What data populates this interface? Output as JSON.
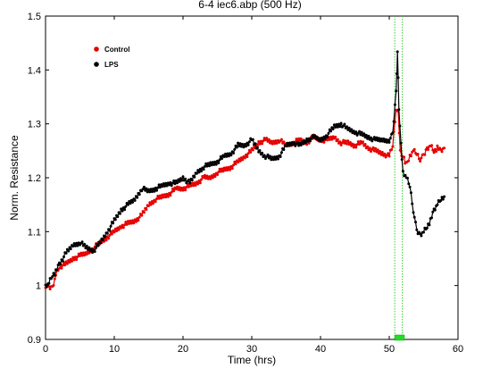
{
  "chart_data": {
    "type": "line",
    "title": "6-4 iec6.abp (500 Hz)",
    "xlabel": "Time (hrs)",
    "ylabel": "Norm. Resistance",
    "xlim": [
      0,
      60
    ],
    "ylim": [
      0.9,
      1.5
    ],
    "xticks": [
      0,
      10,
      20,
      30,
      40,
      50,
      60
    ],
    "yticks": [
      0.9,
      1.0,
      1.1,
      1.2,
      1.3,
      1.4,
      1.5
    ],
    "grid": false,
    "legend_position": "top-left",
    "event_lines_x": [
      50.8,
      51.9
    ],
    "event_bar_x": [
      50.8,
      52.2
    ],
    "event_line_color": "#33cc33",
    "event_bar_color": "#22dd22",
    "series": [
      {
        "name": "Control",
        "color": "#e60000",
        "x": [
          0,
          0.5,
          1,
          1.5,
          2,
          3,
          4,
          5,
          6,
          7,
          8,
          9,
          10,
          11,
          12,
          13,
          14,
          15,
          16,
          17,
          18,
          19,
          20,
          21,
          22,
          23,
          24,
          25,
          26,
          27,
          28,
          29,
          30,
          31,
          32,
          33,
          34,
          35,
          36,
          37,
          38,
          39,
          40,
          41,
          42,
          43,
          44,
          45,
          46,
          47,
          48,
          49,
          50,
          50.5,
          51,
          51.3,
          51.6,
          52,
          52.3,
          52.6,
          53,
          53.5,
          54,
          54.5,
          55,
          55.5,
          56,
          56.5,
          57,
          57.5,
          58
        ],
        "values": [
          1.0,
          0.995,
          0.997,
          1.02,
          1.035,
          1.04,
          1.05,
          1.055,
          1.06,
          1.07,
          1.08,
          1.09,
          1.1,
          1.11,
          1.115,
          1.12,
          1.13,
          1.15,
          1.16,
          1.165,
          1.17,
          1.18,
          1.18,
          1.185,
          1.19,
          1.2,
          1.2,
          1.21,
          1.215,
          1.22,
          1.23,
          1.24,
          1.25,
          1.265,
          1.27,
          1.265,
          1.27,
          1.26,
          1.265,
          1.27,
          1.265,
          1.275,
          1.27,
          1.27,
          1.275,
          1.265,
          1.265,
          1.26,
          1.265,
          1.255,
          1.25,
          1.245,
          1.24,
          1.26,
          1.33,
          1.32,
          1.25,
          1.24,
          1.23,
          1.225,
          1.24,
          1.25,
          1.245,
          1.235,
          1.24,
          1.255,
          1.26,
          1.25,
          1.255,
          1.25,
          1.255
        ]
      },
      {
        "name": "LPS",
        "color": "#000000",
        "x": [
          0,
          0.5,
          1,
          1.5,
          2,
          3,
          4,
          5,
          6,
          7,
          8,
          9,
          10,
          11,
          12,
          13,
          14,
          15,
          16,
          17,
          18,
          19,
          20,
          21,
          22,
          23,
          24,
          25,
          26,
          27,
          28,
          29,
          30,
          31,
          32,
          33,
          34,
          35,
          36,
          37,
          38,
          39,
          40,
          41,
          42,
          43,
          44,
          45,
          46,
          47,
          48,
          49,
          50,
          50.5,
          51,
          51.2,
          51.4,
          51.7,
          52,
          52.5,
          53,
          53.5,
          54,
          54.5,
          55,
          55.5,
          56,
          56.5,
          57,
          57.5,
          58
        ],
        "values": [
          1.0,
          1.005,
          1.02,
          1.025,
          1.04,
          1.06,
          1.075,
          1.08,
          1.07,
          1.065,
          1.08,
          1.1,
          1.12,
          1.14,
          1.15,
          1.16,
          1.18,
          1.175,
          1.18,
          1.185,
          1.19,
          1.19,
          1.2,
          1.19,
          1.21,
          1.22,
          1.225,
          1.23,
          1.24,
          1.245,
          1.26,
          1.26,
          1.27,
          1.25,
          1.24,
          1.235,
          1.24,
          1.26,
          1.265,
          1.26,
          1.27,
          1.275,
          1.27,
          1.28,
          1.295,
          1.3,
          1.29,
          1.285,
          1.28,
          1.275,
          1.27,
          1.27,
          1.27,
          1.28,
          1.36,
          1.435,
          1.33,
          1.26,
          1.21,
          1.2,
          1.185,
          1.14,
          1.1,
          1.095,
          1.1,
          1.11,
          1.12,
          1.14,
          1.15,
          1.16,
          1.165
        ]
      }
    ]
  }
}
